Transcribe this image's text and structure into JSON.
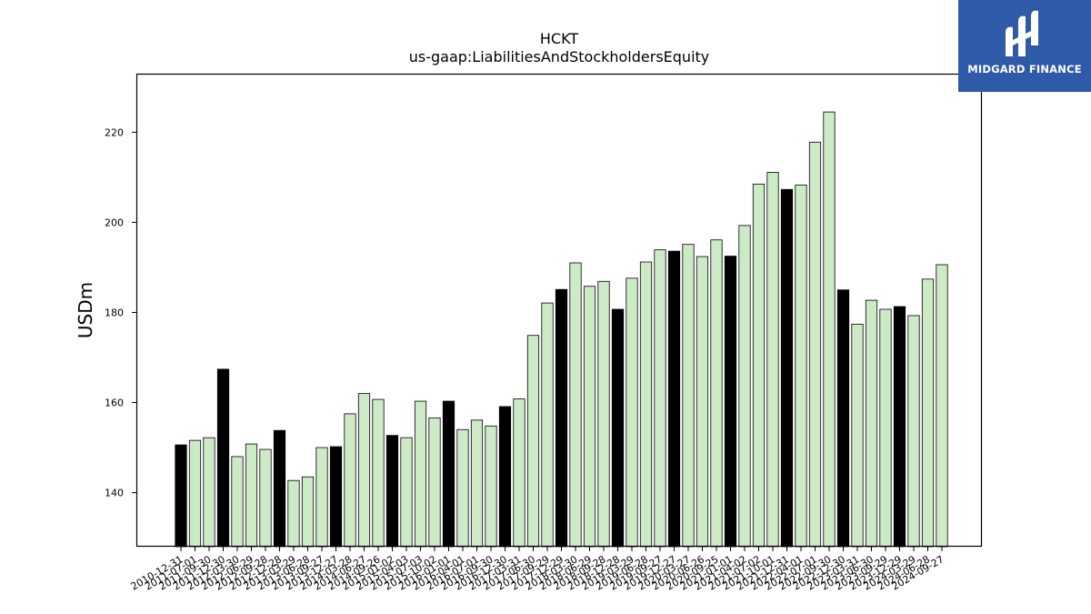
{
  "brand": {
    "name": "MIDGARD FINANCE",
    "bg_color": "#2f5aa8"
  },
  "colors": {
    "annual_bar": "#000000",
    "quarter_bar": "#cdeac6",
    "bar_edge": "#000000"
  },
  "chart_data": {
    "type": "bar",
    "title": "HCKT",
    "subtitle": "us-gaap:LiabilitiesAndStockholdersEquity",
    "xlabel": "",
    "ylabel": "USDm",
    "ylim": [
      128,
      233
    ],
    "yticks": [
      140,
      160,
      180,
      200,
      220
    ],
    "grid": false,
    "categories": [
      "2010-12-31",
      "2011-07-01",
      "2011-09-30",
      "2011-12-30",
      "2012-03-30",
      "2012-06-29",
      "2012-09-28",
      "2012-12-28",
      "2013-03-29",
      "2013-06-28",
      "2013-09-27",
      "2013-12-27",
      "2014-03-28",
      "2014-06-27",
      "2014-09-26",
      "2015-01-02",
      "2015-04-03",
      "2015-07-03",
      "2015-10-02",
      "2016-01-01",
      "2016-04-01",
      "2016-07-01",
      "2016-09-30",
      "2016-12-30",
      "2017-03-31",
      "2017-06-30",
      "2017-09-29",
      "2017-12-29",
      "2018-03-30",
      "2018-06-29",
      "2018-09-28",
      "2018-12-28",
      "2019-03-29",
      "2019-06-28",
      "2019-09-27",
      "2019-12-27",
      "2020-03-27",
      "2020-06-26",
      "2020-09-25",
      "2021-01-01",
      "2021-04-02",
      "2021-07-02",
      "2021-10-01",
      "2021-12-31",
      "2022-04-01",
      "2022-07-01",
      "2022-09-30",
      "2022-12-30",
      "2023-03-31",
      "2023-06-30",
      "2023-09-29",
      "2023-12-29",
      "2024-03-29",
      "2024-06-28",
      "2024-09-27"
    ],
    "values": [
      150.6,
      151.6,
      152.2,
      167.4,
      148.0,
      150.8,
      149.6,
      153.8,
      142.7,
      143.5,
      150.0,
      150.2,
      157.5,
      162.0,
      160.7,
      152.7,
      152.2,
      160.3,
      156.6,
      160.3,
      154.0,
      156.1,
      154.8,
      159.1,
      160.8,
      174.9,
      182.1,
      185.1,
      191.0,
      185.8,
      186.9,
      180.7,
      187.6,
      191.2,
      193.9,
      193.6,
      195.1,
      192.4,
      196.1,
      192.5,
      199.3,
      208.5,
      211.1,
      207.3,
      208.3,
      217.8,
      224.5,
      185.0,
      177.4,
      182.7,
      180.7,
      181.3,
      179.3,
      187.4,
      190.6
    ],
    "annual_flags": [
      1,
      0,
      0,
      1,
      0,
      0,
      0,
      1,
      0,
      0,
      0,
      1,
      0,
      0,
      0,
      1,
      0,
      0,
      0,
      1,
      0,
      0,
      0,
      1,
      0,
      0,
      0,
      1,
      0,
      0,
      0,
      1,
      0,
      0,
      0,
      1,
      0,
      0,
      0,
      1,
      0,
      0,
      0,
      1,
      0,
      0,
      0,
      1,
      0,
      0,
      0,
      1,
      0,
      0,
      0
    ]
  }
}
